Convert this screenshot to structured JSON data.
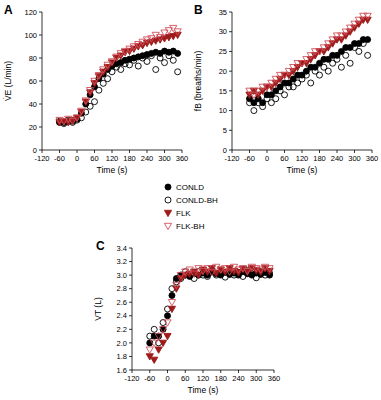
{
  "chart_data": [
    {
      "type": "scatter",
      "title": "A",
      "xlabel": "Time (s)",
      "ylabel": "V̇E (L/min)",
      "legend": "bottom",
      "x": [
        -60,
        -45,
        -30,
        -15,
        0,
        15,
        30,
        45,
        60,
        75,
        90,
        105,
        120,
        135,
        150,
        165,
        180,
        195,
        210,
        225,
        240,
        255,
        270,
        285,
        300,
        315,
        330,
        345
      ],
      "xlim": [
        -120,
        360
      ],
      "xticks": [
        -120,
        -60,
        0,
        60,
        120,
        180,
        240,
        300,
        360
      ],
      "ylim": [
        0,
        120
      ],
      "yticks": [
        0,
        20,
        40,
        60,
        80,
        100,
        120
      ],
      "grid": false,
      "series": [
        {
          "name": "CONLD",
          "color": "#000000",
          "marker": "circle",
          "values": [
            24,
            24,
            25,
            25,
            27,
            32,
            40,
            48,
            55,
            62,
            66,
            70,
            73,
            75,
            76,
            78,
            79,
            80,
            81,
            82,
            83,
            84,
            85,
            84,
            86,
            85,
            86,
            84
          ]
        },
        {
          "name": "CONLD-BH",
          "color": "#000000",
          "marker": "circle-open",
          "values": [
            25,
            23,
            26,
            24,
            26,
            28,
            33,
            38,
            42,
            52,
            58,
            62,
            68,
            72,
            70,
            75,
            74,
            78,
            73,
            80,
            77,
            82,
            70,
            80,
            76,
            82,
            78,
            68
          ]
        },
        {
          "name": "FLK",
          "color": "#9e1b1b",
          "marker": "triangle-down",
          "values": [
            24,
            25,
            24,
            26,
            28,
            33,
            42,
            50,
            58,
            64,
            68,
            72,
            76,
            80,
            82,
            85,
            86,
            88,
            90,
            91,
            93,
            94,
            95,
            96,
            97,
            98,
            99,
            100
          ]
        },
        {
          "name": "FLK-BH",
          "color": "#d0505a",
          "marker": "triangle-down-open",
          "values": [
            26,
            25,
            27,
            25,
            28,
            34,
            43,
            52,
            60,
            65,
            70,
            74,
            77,
            81,
            84,
            86,
            88,
            90,
            92,
            94,
            96,
            97,
            100,
            98,
            102,
            104,
            106,
            103
          ]
        }
      ]
    },
    {
      "type": "scatter",
      "title": "B",
      "xlabel": "Time (s)",
      "ylabel": "fB (breaths/min)",
      "x": [
        -60,
        -45,
        -30,
        -15,
        0,
        15,
        30,
        45,
        60,
        75,
        90,
        105,
        120,
        135,
        150,
        165,
        180,
        195,
        210,
        225,
        240,
        255,
        270,
        285,
        300,
        315,
        330,
        345
      ],
      "xlim": [
        -120,
        360
      ],
      "xticks": [
        -120,
        -60,
        0,
        60,
        120,
        180,
        240,
        300,
        360
      ],
      "ylim": [
        0,
        35
      ],
      "yticks": [
        0,
        5,
        10,
        15,
        20,
        25,
        30,
        35
      ],
      "grid": false,
      "series": [
        {
          "name": "CONLD",
          "color": "#000000",
          "marker": "circle",
          "values": [
            13,
            12,
            13,
            12,
            14,
            14,
            15,
            16,
            17,
            17,
            18,
            19,
            19,
            20,
            21,
            21,
            22,
            23,
            23,
            24,
            24,
            25,
            26,
            26,
            27,
            27,
            28,
            28
          ]
        },
        {
          "name": "CONLD-BH",
          "color": "#000000",
          "marker": "circle-open",
          "values": [
            12,
            10,
            12,
            11,
            13,
            12,
            13,
            15,
            14,
            16,
            16,
            17,
            18,
            19,
            17,
            20,
            19,
            21,
            20,
            22,
            23,
            21,
            24,
            22,
            26,
            25,
            27,
            24
          ]
        },
        {
          "name": "FLK",
          "color": "#9e1b1b",
          "marker": "triangle-down",
          "values": [
            14,
            15,
            14,
            15,
            16,
            16,
            17,
            18,
            19,
            19,
            20,
            21,
            22,
            22,
            23,
            24,
            25,
            25,
            26,
            27,
            28,
            28,
            29,
            30,
            31,
            32,
            33,
            33
          ]
        },
        {
          "name": "FLK-BH",
          "color": "#d0505a",
          "marker": "triangle-down-open",
          "values": [
            15,
            14,
            15,
            16,
            16,
            17,
            18,
            19,
            19,
            20,
            21,
            22,
            22,
            23,
            24,
            25,
            25,
            26,
            27,
            28,
            29,
            29,
            30,
            31,
            32,
            33,
            34,
            34
          ]
        }
      ]
    },
    {
      "type": "scatter",
      "title": "C",
      "xlabel": "Time (s)",
      "ylabel": "VT (L)",
      "x": [
        -60,
        -45,
        -30,
        -15,
        0,
        15,
        30,
        45,
        60,
        75,
        90,
        105,
        120,
        135,
        150,
        165,
        180,
        195,
        210,
        225,
        240,
        255,
        270,
        285,
        300,
        315,
        330,
        345
      ],
      "xlim": [
        -120,
        360
      ],
      "xticks": [
        -120,
        -60,
        0,
        60,
        120,
        180,
        240,
        300,
        360
      ],
      "ylim": [
        1.6,
        3.4
      ],
      "yticks": [
        1.6,
        1.8,
        {
          "value": 2,
          "label": "2.0"
        },
        2.2,
        2.4,
        2.6,
        2.8,
        {
          "value": 3,
          "label": "3.0"
        },
        3.2,
        3.4
      ],
      "grid": false,
      "series": [
        {
          "name": "CONLD",
          "color": "#000000",
          "marker": "circle",
          "values": [
            2.0,
            2.1,
            2.1,
            2.2,
            2.4,
            2.7,
            2.95,
            3.0,
            3.0,
            2.98,
            3.02,
            3.0,
            3.03,
            3.0,
            3.05,
            3.02,
            3.0,
            3.04,
            3.01,
            3.03,
            3.0,
            3.05,
            3.02,
            3.0,
            3.03,
            3.01,
            3.04,
            3.0
          ]
        },
        {
          "name": "CONLD-BH",
          "color": "#000000",
          "marker": "circle-open",
          "values": [
            2.1,
            2.2,
            2.0,
            2.3,
            2.5,
            2.8,
            2.9,
            2.95,
            3.05,
            3.0,
            2.95,
            3.05,
            3.0,
            2.98,
            3.08,
            3.0,
            3.05,
            2.97,
            3.06,
            3.0,
            3.04,
            2.98,
            3.07,
            3.02,
            2.96,
            3.05,
            3.0,
            3.03
          ]
        },
        {
          "name": "FLK",
          "color": "#9e1b1b",
          "marker": "triangle-down",
          "values": [
            1.8,
            1.75,
            1.9,
            2.0,
            2.1,
            2.5,
            2.8,
            2.95,
            3.0,
            3.02,
            3.05,
            3.0,
            3.08,
            3.05,
            3.1,
            3.03,
            3.08,
            3.05,
            3.1,
            3.06,
            3.04,
            3.09,
            3.05,
            3.1,
            3.07,
            3.05,
            3.1,
            3.06
          ]
        },
        {
          "name": "FLK-BH",
          "color": "#d0505a",
          "marker": "triangle-down-open",
          "values": [
            1.9,
            2.0,
            2.1,
            2.2,
            2.3,
            2.6,
            2.85,
            3.0,
            3.05,
            3.08,
            3.02,
            3.1,
            3.06,
            3.1,
            3.04,
            3.12,
            3.08,
            3.1,
            3.05,
            3.12,
            3.08,
            3.1,
            3.06,
            3.12,
            3.1,
            3.08,
            3.12,
            3.1
          ]
        }
      ]
    }
  ]
}
